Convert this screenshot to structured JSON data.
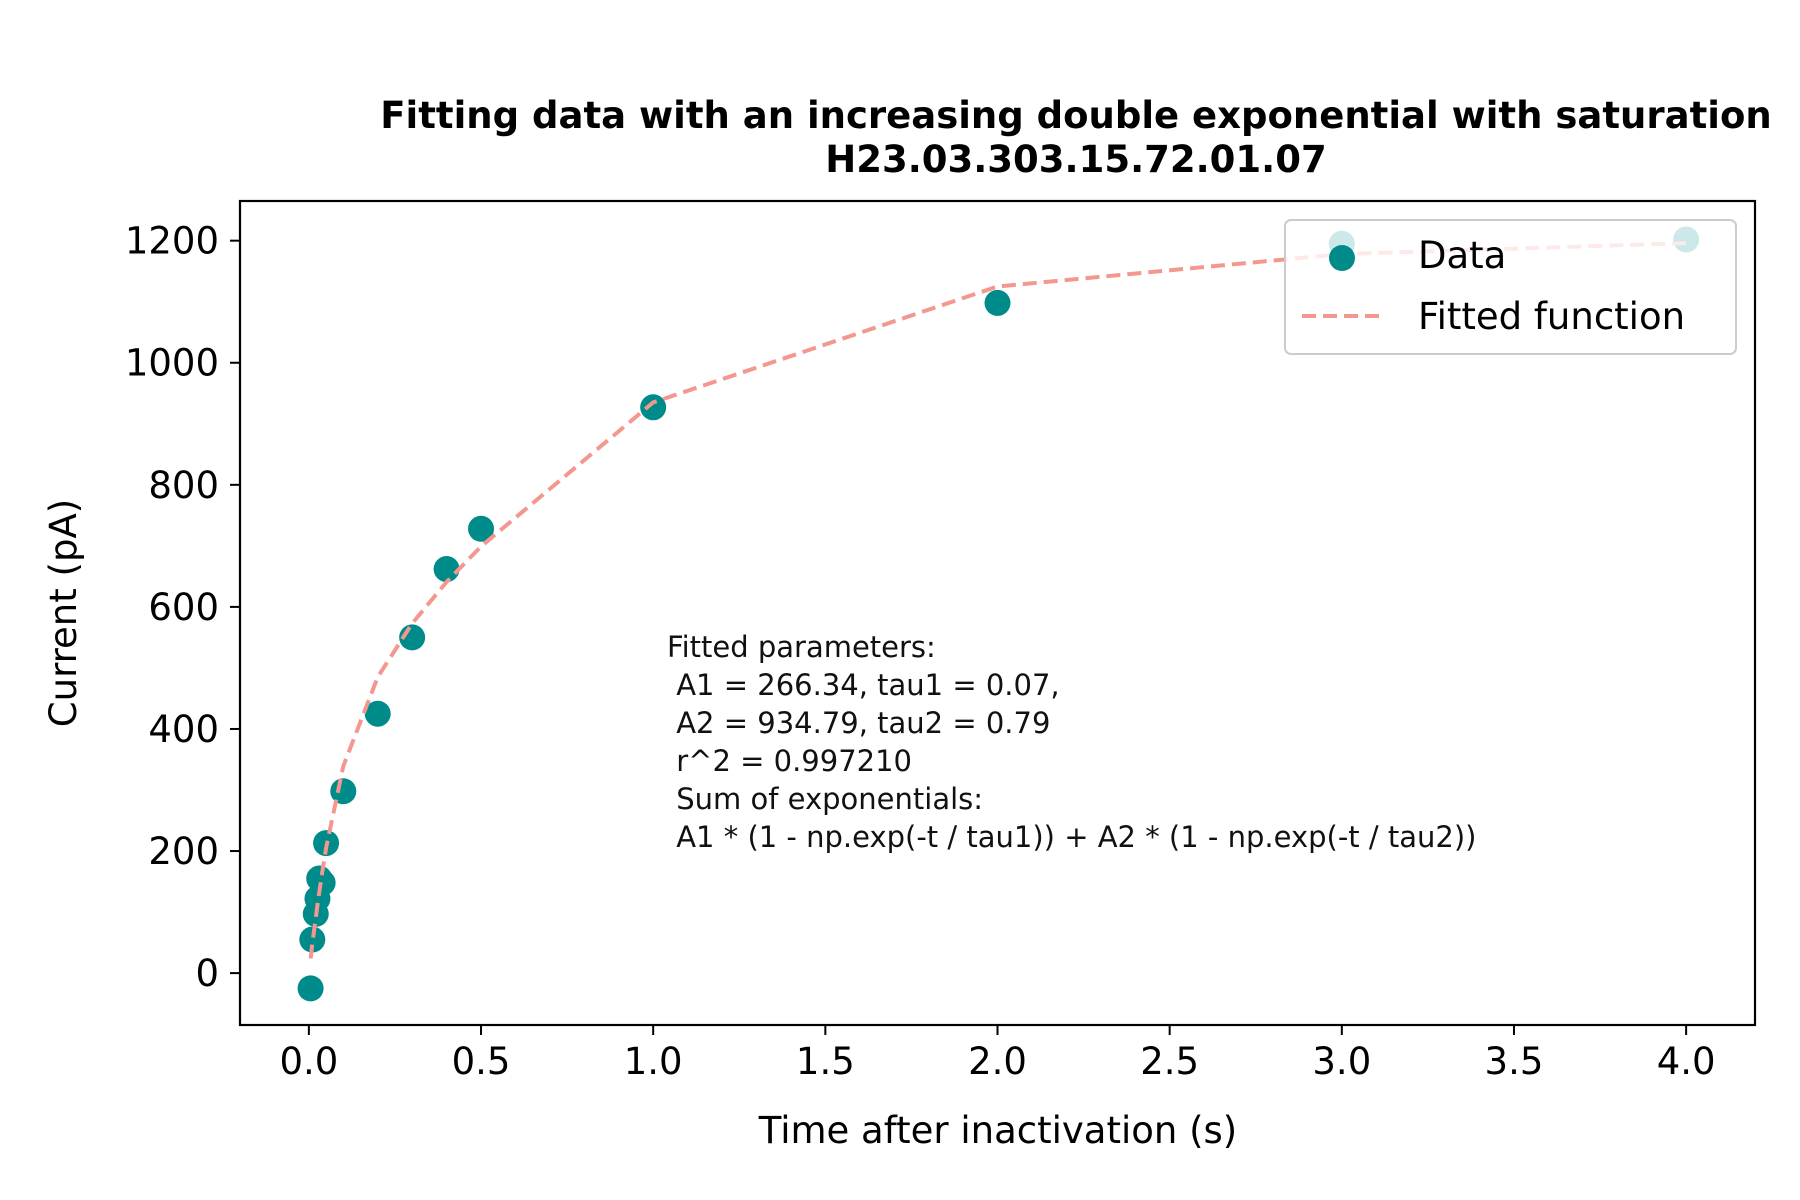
{
  "chart_data": {
    "type": "scatter",
    "title": "Fitting data with an increasing double exponential with saturation",
    "subtitle": "H23.03.303.15.72.01.07",
    "xlabel": "Time after inactivation (s)",
    "ylabel": "Current (pA)",
    "xlim": [
      -0.2,
      4.2
    ],
    "ylim": [
      -85,
      1265
    ],
    "xticks": [
      "0.0",
      "0.5",
      "1.0",
      "1.5",
      "2.0",
      "2.5",
      "3.0",
      "3.5",
      "4.0"
    ],
    "yticks": [
      "0",
      "200",
      "400",
      "600",
      "800",
      "1000",
      "1200"
    ],
    "grid": false,
    "legend_position": "top-right",
    "series": [
      {
        "name": "Data",
        "kind": "scatter",
        "color": "#008b8b",
        "x": [
          0.005,
          0.01,
          0.02,
          0.025,
          0.03,
          0.04,
          0.05,
          0.1,
          0.2,
          0.3,
          0.4,
          0.5,
          1.0,
          2.0,
          3.0,
          4.0
        ],
        "y": [
          -25,
          55,
          97,
          122,
          155,
          148,
          213,
          298,
          425,
          550,
          662,
          728,
          927,
          1098,
          1195,
          1202
        ]
      },
      {
        "name": "Fitted function",
        "kind": "line",
        "color": "#f4978e",
        "dash": "dashed",
        "x": [
          0.005,
          0.01,
          0.02,
          0.025,
          0.03,
          0.04,
          0.05,
          0.1,
          0.2,
          0.3,
          0.4,
          0.5,
          1.0,
          2.0,
          3.0,
          4.0
        ],
        "y": [
          24,
          48,
          91,
          112,
          132,
          169,
          205,
          339,
          485,
          573,
          641,
          699,
          935,
          1125,
          1178,
          1196
        ]
      }
    ],
    "annotation": [
      "Fitted parameters:",
      " A1 = 266.34, tau1 = 0.07,",
      " A2 = 934.79, tau2 = 0.79",
      " r^2 = 0.997210",
      " Sum of exponentials:",
      " A1 * (1 - np.exp(-t / tau1)) + A2 * (1 - np.exp(-t / tau2))"
    ]
  }
}
